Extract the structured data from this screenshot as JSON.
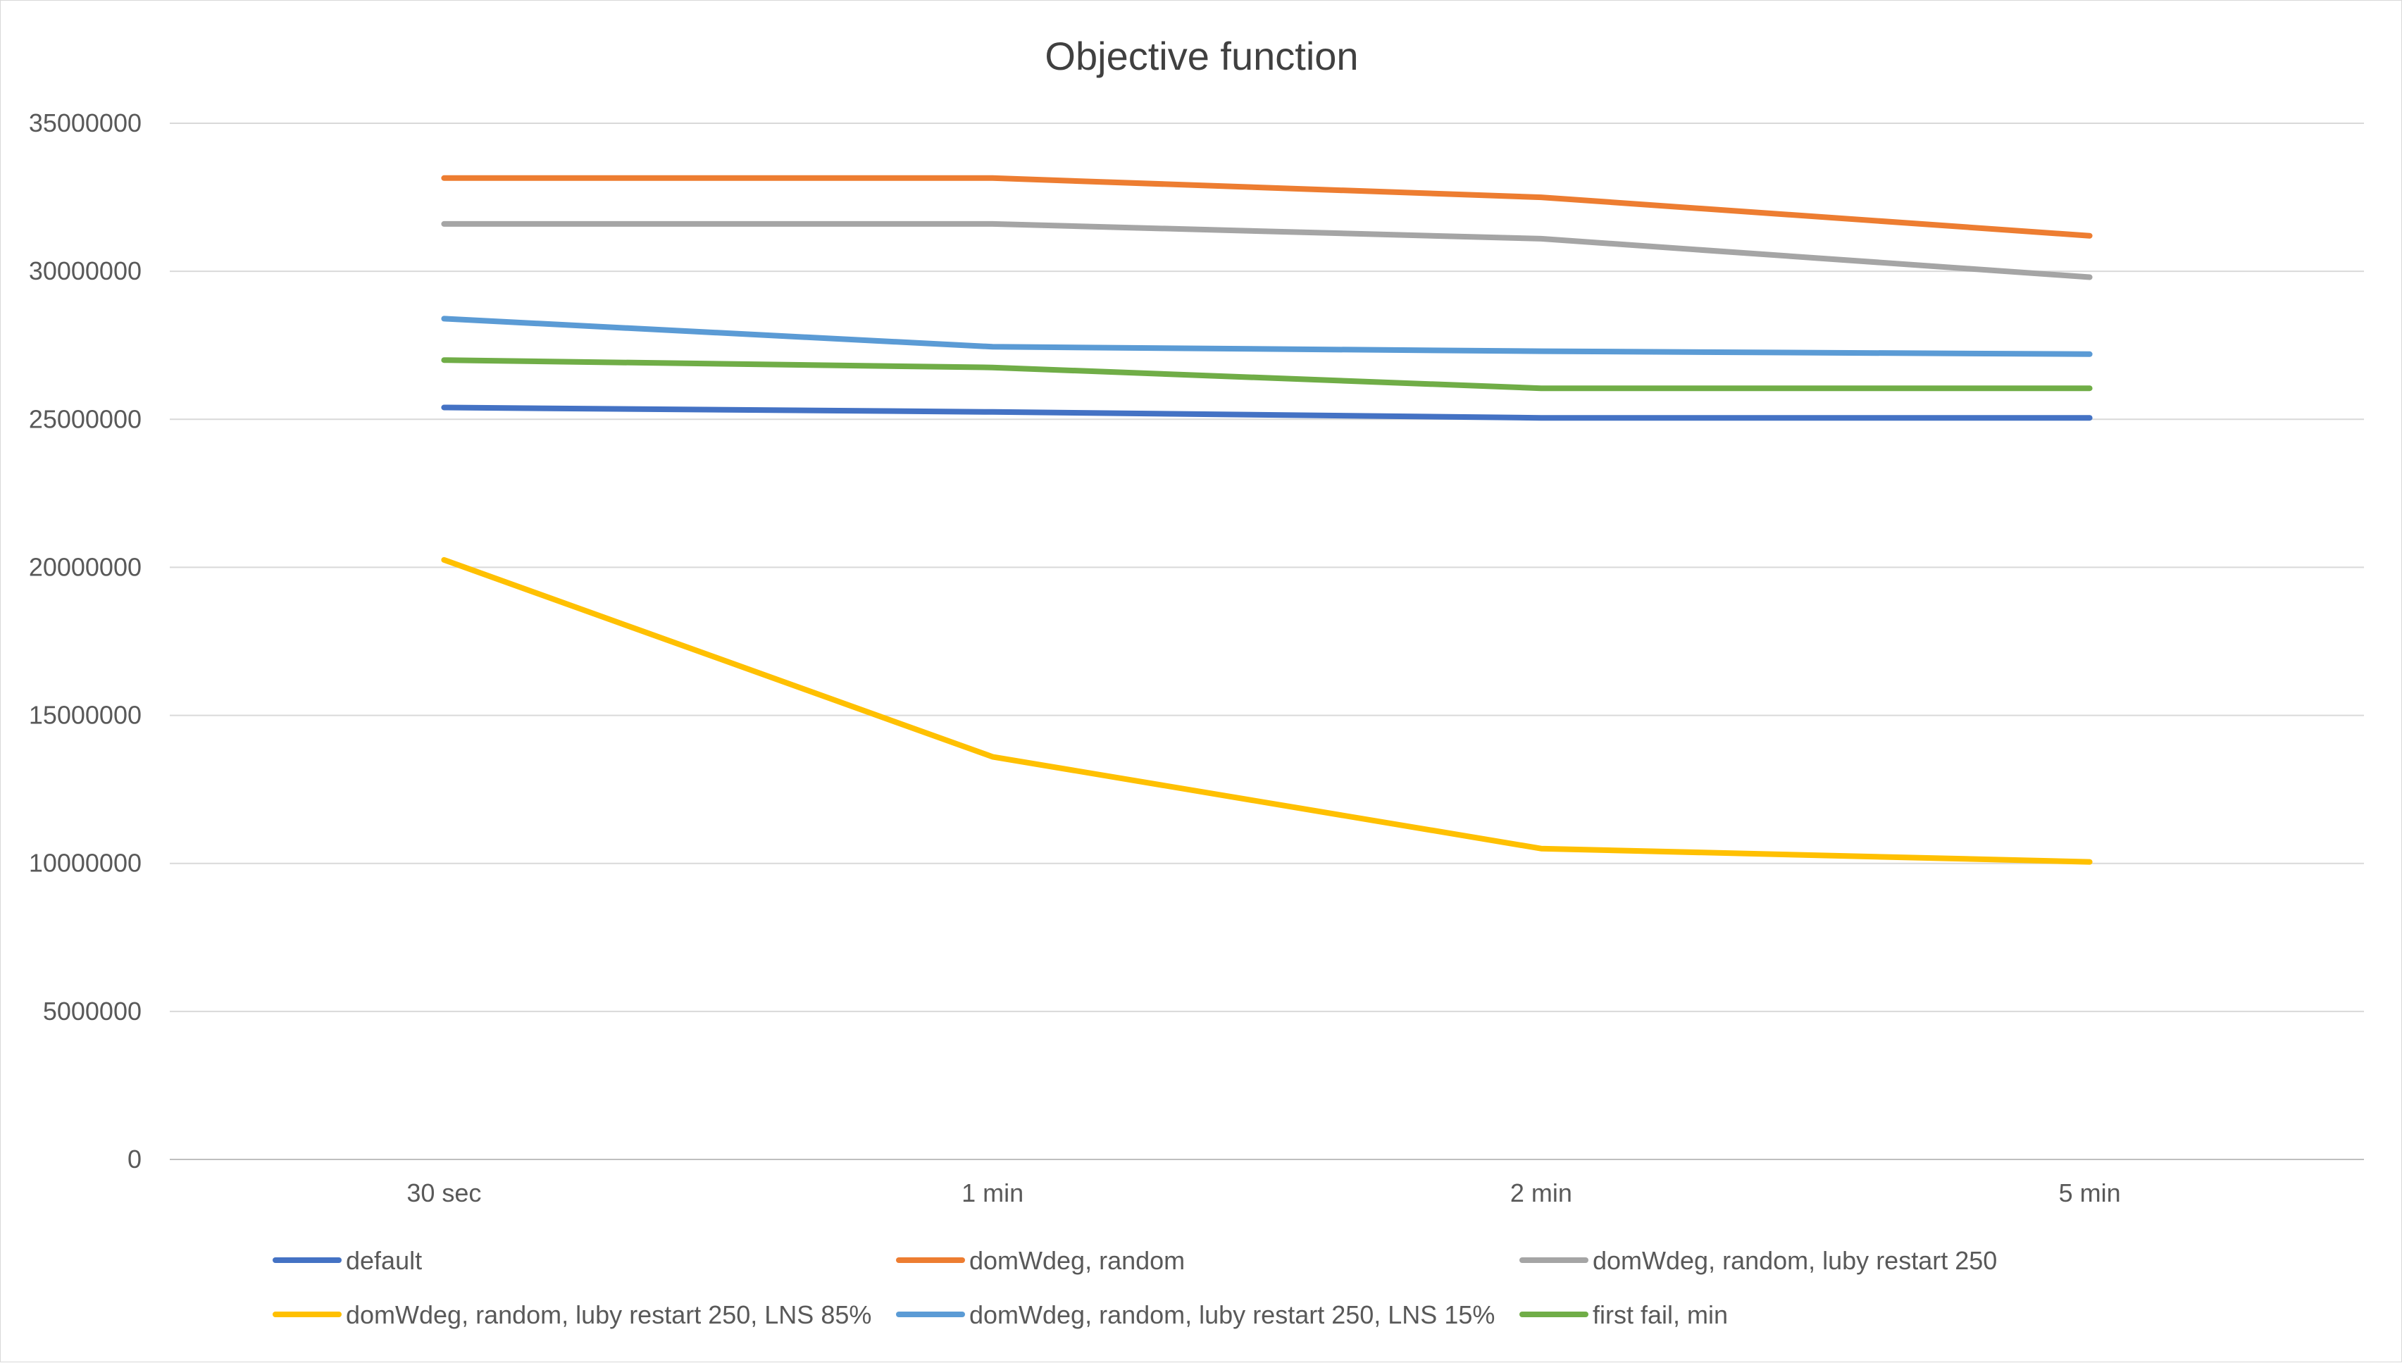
{
  "chart_data": {
    "type": "line",
    "title": "Objective function",
    "xlabel": "",
    "ylabel": "",
    "categories": [
      "30 sec",
      "1 min",
      "2 min",
      "5 min"
    ],
    "ylim": [
      0,
      35000000
    ],
    "yticks": [
      "0",
      "5000000",
      "10000000",
      "15000000",
      "20000000",
      "25000000",
      "30000000",
      "35000000"
    ],
    "grid": true,
    "legend_position": "bottom",
    "series": [
      {
        "name": "default",
        "color": "#4472C4",
        "values": [
          25400000,
          25250000,
          25050000,
          25050000
        ]
      },
      {
        "name": "domWdeg, random",
        "color": "#ED7D31",
        "values": [
          33150000,
          33150000,
          32500000,
          31200000
        ]
      },
      {
        "name": "domWdeg, random, luby restart 250",
        "color": "#A5A5A5",
        "values": [
          31600000,
          31600000,
          31100000,
          29800000
        ]
      },
      {
        "name": "domWdeg, random, luby restart 250, LNS 85%",
        "color": "#FFC000",
        "values": [
          20250000,
          13600000,
          10500000,
          10050000
        ]
      },
      {
        "name": "domWdeg, random, luby restart 250, LNS 15%",
        "color": "#5B9BD5",
        "values": [
          28400000,
          27450000,
          27300000,
          27200000
        ]
      },
      {
        "name": "first fail, min",
        "color": "#70AD47",
        "values": [
          27000000,
          26750000,
          26050000,
          26050000
        ]
      }
    ]
  }
}
